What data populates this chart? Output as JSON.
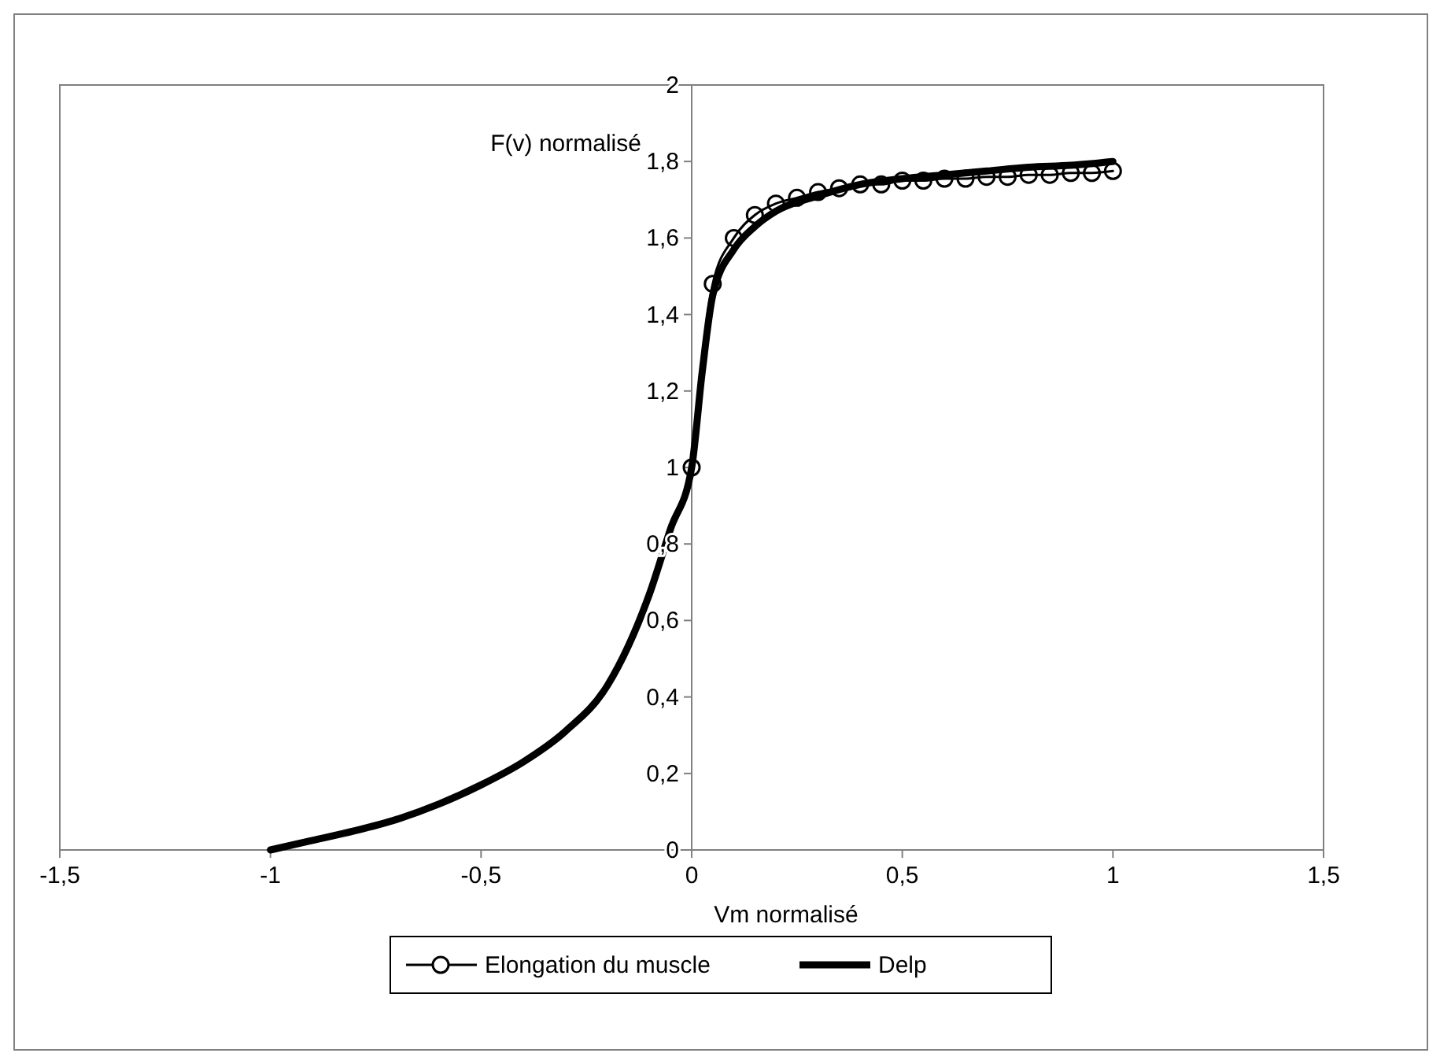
{
  "chart_data": {
    "type": "line",
    "xlabel": "Vm normalisé",
    "ylabel": "F(v) normalisé",
    "xlim": [
      -1.5,
      1.5
    ],
    "ylim": [
      0,
      2
    ],
    "xticks": [
      {
        "value": -1.5,
        "label": "-1,5"
      },
      {
        "value": -1,
        "label": "-1"
      },
      {
        "value": -0.5,
        "label": "-0,5"
      },
      {
        "value": 0,
        "label": "0"
      },
      {
        "value": 0.5,
        "label": "0,5"
      },
      {
        "value": 1,
        "label": "1"
      },
      {
        "value": 1.5,
        "label": "1,5"
      }
    ],
    "yticks": [
      {
        "value": 0,
        "label": "0"
      },
      {
        "value": 0.2,
        "label": "0,2"
      },
      {
        "value": 0.4,
        "label": "0,4"
      },
      {
        "value": 0.6,
        "label": "0,6"
      },
      {
        "value": 0.8,
        "label": "0,8"
      },
      {
        "value": 1,
        "label": "1"
      },
      {
        "value": 1.2,
        "label": "1,2"
      },
      {
        "value": 1.4,
        "label": "1,4"
      },
      {
        "value": 1.6,
        "label": "1,6"
      },
      {
        "value": 1.8,
        "label": "1,8"
      },
      {
        "value": 2,
        "label": "2"
      }
    ],
    "grid": false,
    "legend": "bottom",
    "series": [
      {
        "name": "Elongation du muscle",
        "color": "#000000",
        "marker": "circle",
        "x": [
          0,
          0.05,
          0.1,
          0.15,
          0.2,
          0.25,
          0.3,
          0.35,
          0.4,
          0.45,
          0.5,
          0.55,
          0.6,
          0.65,
          0.7,
          0.75,
          0.8,
          0.85,
          0.9,
          0.95,
          1
        ],
        "values": [
          1,
          1.48,
          1.6,
          1.66,
          1.69,
          1.705,
          1.72,
          1.73,
          1.74,
          1.74,
          1.75,
          1.75,
          1.755,
          1.755,
          1.76,
          1.76,
          1.765,
          1.765,
          1.77,
          1.77,
          1.775
        ]
      },
      {
        "name": "Delp",
        "color": "#000000",
        "marker": "none",
        "x": [
          -1,
          -0.9,
          -0.8,
          -0.7,
          -0.6,
          -0.5,
          -0.4,
          -0.3,
          -0.2,
          -0.1,
          -0.05,
          0,
          0.025,
          0.05,
          0.1,
          0.15,
          0.2,
          0.3,
          0.4,
          0.5,
          0.6,
          0.7,
          0.8,
          0.9,
          1
        ],
        "values": [
          0,
          0.025,
          0.05,
          0.08,
          0.12,
          0.17,
          0.23,
          0.31,
          0.43,
          0.67,
          0.84,
          1,
          1.25,
          1.45,
          1.57,
          1.63,
          1.67,
          1.71,
          1.74,
          1.755,
          1.765,
          1.775,
          1.785,
          1.79,
          1.8
        ]
      }
    ]
  }
}
